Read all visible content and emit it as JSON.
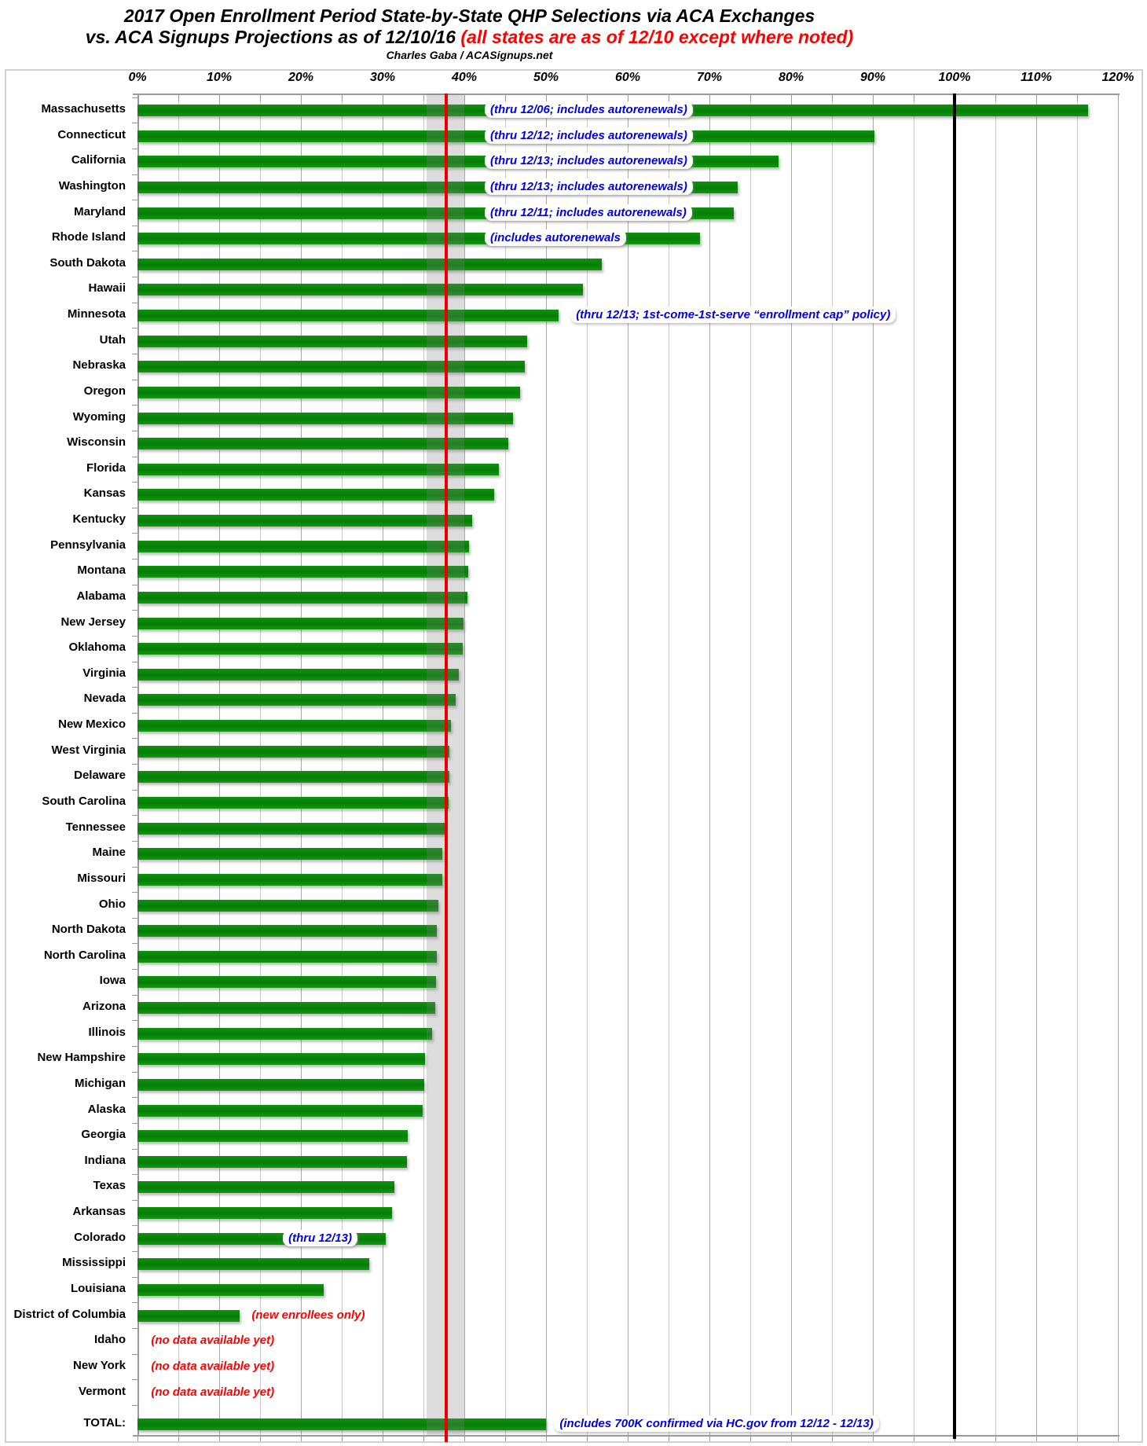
{
  "title": {
    "line1": "2017 Open Enrollment Period State-by-State QHP Selections via ACA Exchanges",
    "line2_black": "vs. ACA Signups Projections as of 12/10/16",
    "line2_red": "(all states are as of 12/10 except where noted)",
    "byline": "Charles Gaba / ACASignups.net"
  },
  "colors": {
    "bar_green": "#0a8a0a",
    "note_blue": "#0000e6",
    "note_red": "#ff0000",
    "red_reference_line": "#e60000",
    "black_reference_line": "#000000",
    "gray_band": "rgba(125,125,125,0.27)"
  },
  "chart_data": {
    "type": "bar",
    "orientation": "horizontal",
    "units": "percent of projection",
    "xlim": [
      0,
      120
    ],
    "x_tick_labels": [
      "0%",
      "10%",
      "20%",
      "30%",
      "40%",
      "50%",
      "60%",
      "70%",
      "80%",
      "90%",
      "100%",
      "110%",
      "120%"
    ],
    "minor_grid_step_pct": 5,
    "grid": true,
    "reference_lines": {
      "red_line_pct": 37.8,
      "black_line_pct": 100,
      "gray_band_pct": [
        35.4,
        40.0
      ]
    },
    "rows": [
      {
        "label": "Massachusetts",
        "value": 116.3,
        "note": "(thru 12/06; includes autorenewals)",
        "note_color": "blue",
        "note_at_pct": 42.5
      },
      {
        "label": "Connecticut",
        "value": 90.2,
        "note": "(thru 12/12; includes autorenewals)",
        "note_color": "blue",
        "note_at_pct": 42.5
      },
      {
        "label": "California",
        "value": 78.5,
        "note": "(thru 12/13; includes autorenewals)",
        "note_color": "blue",
        "note_at_pct": 42.5
      },
      {
        "label": "Washington",
        "value": 73.5,
        "note": "(thru 12/13; includes autorenewals)",
        "note_color": "blue",
        "note_at_pct": 42.5
      },
      {
        "label": "Maryland",
        "value": 73.0,
        "note": "(thru 12/11; includes autorenewals)",
        "note_color": "blue",
        "note_at_pct": 42.5
      },
      {
        "label": "Rhode Island",
        "value": 68.8,
        "note": "(includes autorenewals",
        "note_color": "blue",
        "note_at_pct": 42.5
      },
      {
        "label": "South Dakota",
        "value": 56.8,
        "note": null
      },
      {
        "label": "Hawaii",
        "value": 54.5,
        "note": null
      },
      {
        "label": "Minnesota",
        "value": 51.5,
        "note": "(thru 12/13; 1st-come-1st-serve “enrollment cap” policy)",
        "note_color": "blue",
        "note_at_pct": 53.0
      },
      {
        "label": "Utah",
        "value": 47.7,
        "note": null
      },
      {
        "label": "Nebraska",
        "value": 47.4,
        "note": null
      },
      {
        "label": "Oregon",
        "value": 46.8,
        "note": null
      },
      {
        "label": "Wyoming",
        "value": 46.0,
        "note": null
      },
      {
        "label": "Wisconsin",
        "value": 45.4,
        "note": null
      },
      {
        "label": "Florida",
        "value": 44.2,
        "note": null
      },
      {
        "label": "Kansas",
        "value": 43.7,
        "note": null
      },
      {
        "label": "Kentucky",
        "value": 41.0,
        "note": null
      },
      {
        "label": "Pennsylvania",
        "value": 40.6,
        "note": null
      },
      {
        "label": "Montana",
        "value": 40.5,
        "note": null
      },
      {
        "label": "Alabama",
        "value": 40.4,
        "note": null
      },
      {
        "label": "New Jersey",
        "value": 39.9,
        "note": null
      },
      {
        "label": "Oklahoma",
        "value": 39.8,
        "note": null
      },
      {
        "label": "Virginia",
        "value": 39.3,
        "note": null
      },
      {
        "label": "Nevada",
        "value": 38.9,
        "note": null
      },
      {
        "label": "New Mexico",
        "value": 38.4,
        "note": null
      },
      {
        "label": "West Virginia",
        "value": 38.2,
        "note": null
      },
      {
        "label": "Delaware",
        "value": 38.2,
        "note": null
      },
      {
        "label": "South Carolina",
        "value": 38.1,
        "note": null
      },
      {
        "label": "Tennessee",
        "value": 37.7,
        "note": null
      },
      {
        "label": "Maine",
        "value": 37.3,
        "note": null
      },
      {
        "label": "Missouri",
        "value": 37.3,
        "note": null
      },
      {
        "label": "Ohio",
        "value": 36.8,
        "note": null
      },
      {
        "label": "North Dakota",
        "value": 36.6,
        "note": null
      },
      {
        "label": "North Carolina",
        "value": 36.6,
        "note": null
      },
      {
        "label": "Iowa",
        "value": 36.5,
        "note": null
      },
      {
        "label": "Arizona",
        "value": 36.4,
        "note": null
      },
      {
        "label": "Illinois",
        "value": 36.1,
        "note": null
      },
      {
        "label": "New Hampshire",
        "value": 35.2,
        "note": null
      },
      {
        "label": "Michigan",
        "value": 35.1,
        "note": null
      },
      {
        "label": "Alaska",
        "value": 34.9,
        "note": null
      },
      {
        "label": "Georgia",
        "value": 33.1,
        "note": null
      },
      {
        "label": "Indiana",
        "value": 33.0,
        "note": null
      },
      {
        "label": "Texas",
        "value": 31.4,
        "note": null
      },
      {
        "label": "Arkansas",
        "value": 31.2,
        "note": null
      },
      {
        "label": "Colorado",
        "value": 30.4,
        "note": "(thru 12/13)",
        "note_color": "blue",
        "note_at_pct": 17.8
      },
      {
        "label": "Mississippi",
        "value": 28.4,
        "note": null
      },
      {
        "label": "Louisiana",
        "value": 22.8,
        "note": null
      },
      {
        "label": "District of Columbia",
        "value": 12.5,
        "note": "(new enrollees only)",
        "note_color": "red",
        "note_at_pct": 13.3
      },
      {
        "label": "Idaho",
        "value": null,
        "note": "(no data available yet)",
        "note_color": "red",
        "note_at_pct": 1.0
      },
      {
        "label": "New York",
        "value": null,
        "note": "(no data available yet)",
        "note_color": "red",
        "note_at_pct": 1.0
      },
      {
        "label": "Vermont",
        "value": null,
        "note": "(no data available yet)",
        "note_color": "red",
        "note_at_pct": 1.0
      },
      {
        "label": "TOTAL:",
        "value": 50.0,
        "is_total": true,
        "note": "(includes 700K confirmed via HC.gov from 12/12 - 12/13)",
        "note_color": "blue",
        "note_at_pct": 51.0
      }
    ]
  }
}
